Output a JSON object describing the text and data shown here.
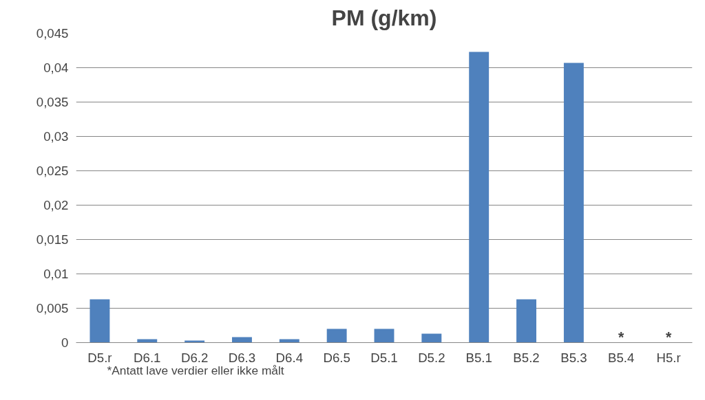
{
  "chart_data": {
    "type": "bar",
    "title": "PM (g/km)",
    "categories": [
      "D5.r",
      "D6.1",
      "D6.2",
      "D6.3",
      "D6.4",
      "D6.5",
      "D5.1",
      "D5.2",
      "B5.1",
      "B5.2",
      "B5.3",
      "B5.4",
      "H5.r"
    ],
    "values": [
      0.0063,
      0.0005,
      0.0003,
      0.0008,
      0.0005,
      0.002,
      0.002,
      0.0013,
      0.0423,
      0.0063,
      0.0407,
      null,
      null
    ],
    "color": "#4f81bd",
    "ylim": [
      0,
      0.045
    ],
    "yticks": [
      {
        "value": 0,
        "label": "0"
      },
      {
        "value": 0.005,
        "label": "0,005"
      },
      {
        "value": 0.01,
        "label": "0,01"
      },
      {
        "value": 0.015,
        "label": "0,015"
      },
      {
        "value": 0.02,
        "label": "0,02"
      },
      {
        "value": 0.025,
        "label": "0,025"
      },
      {
        "value": 0.03,
        "label": "0,03"
      },
      {
        "value": 0.035,
        "label": "0,035"
      },
      {
        "value": 0.04,
        "label": "0,04"
      },
      {
        "value": 0.045,
        "label": "0,045"
      }
    ],
    "grid": "y",
    "annotations": [
      "*",
      "*",
      "*Antatt lave verdier eller ikke målt"
    ]
  }
}
